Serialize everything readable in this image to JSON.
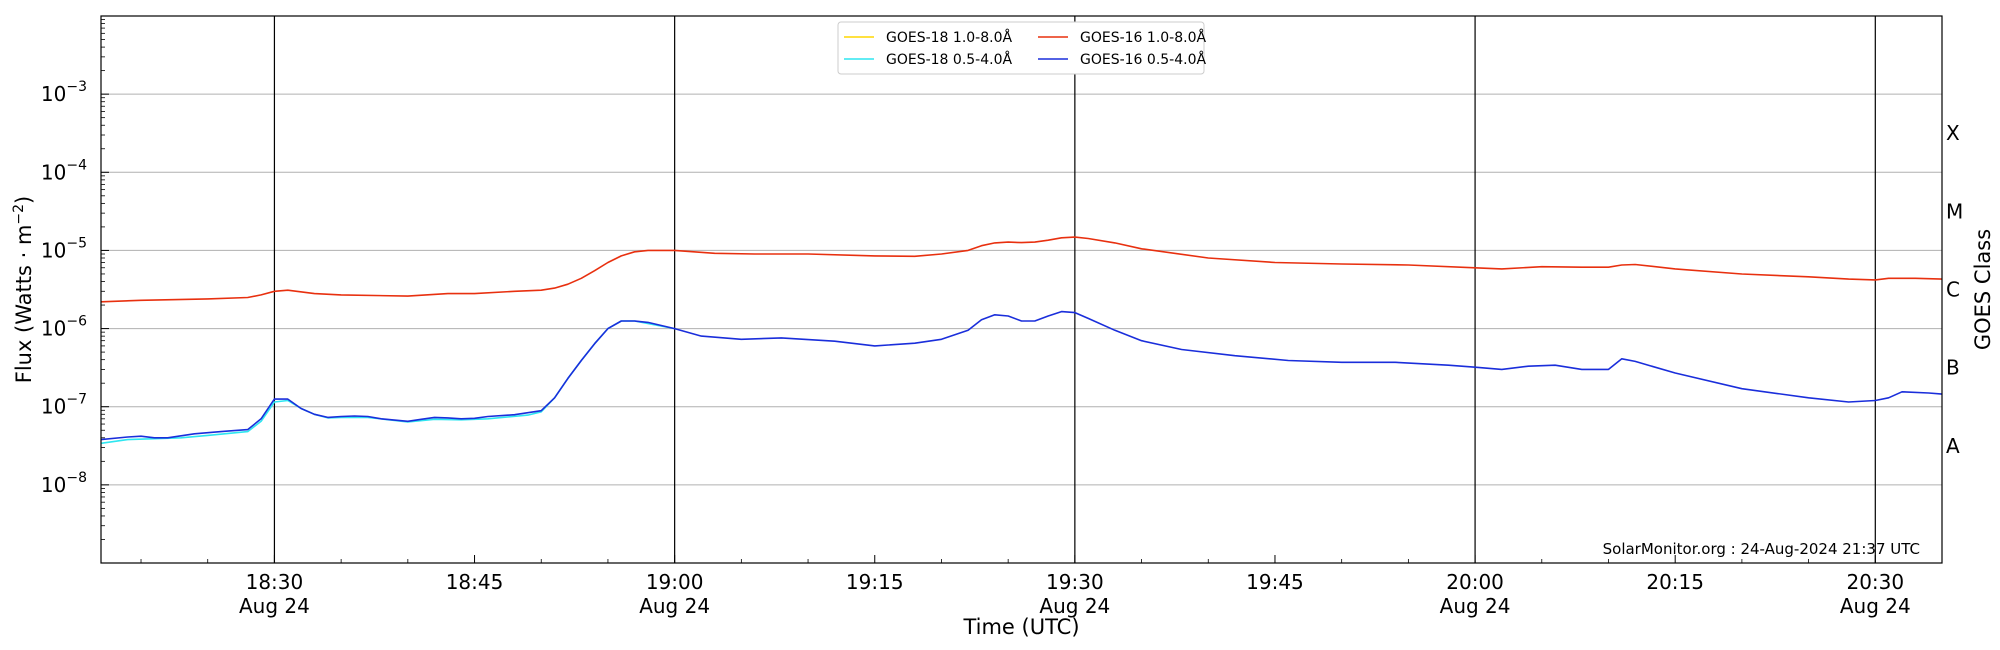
{
  "chart_data": {
    "type": "line",
    "xlabel": "Time (UTC)",
    "ylabel_main": "Flux (Watts · m",
    "ylabel_exp": "−2",
    "ylabel_close": ")",
    "right_axis_label": "GOES Class",
    "y_scale": "log",
    "ylim": [
      1e-09,
      0.01
    ],
    "xlim": [
      "18:17",
      "20:35"
    ],
    "x_ticks": [
      {
        "time": "18:30",
        "label": "18:30",
        "date": "Aug 24"
      },
      {
        "time": "18:45",
        "label": "18:45",
        "date": ""
      },
      {
        "time": "19:00",
        "label": "19:00",
        "date": "Aug 24"
      },
      {
        "time": "19:15",
        "label": "19:15",
        "date": ""
      },
      {
        "time": "19:30",
        "label": "19:30",
        "date": "Aug 24"
      },
      {
        "time": "19:45",
        "label": "19:45",
        "date": ""
      },
      {
        "time": "20:00",
        "label": "20:00",
        "date": "Aug 24"
      },
      {
        "time": "20:15",
        "label": "20:15",
        "date": ""
      },
      {
        "time": "20:30",
        "label": "20:30",
        "date": "Aug 24"
      }
    ],
    "vertical_lines": [
      "18:30",
      "19:00",
      "19:30",
      "20:00",
      "20:30"
    ],
    "y_ticks": [
      {
        "exp": -8,
        "label_base": "10",
        "label_exp": "−8"
      },
      {
        "exp": -7,
        "label_base": "10",
        "label_exp": "−7"
      },
      {
        "exp": -6,
        "label_base": "10",
        "label_exp": "−6"
      },
      {
        "exp": -5,
        "label_base": "10",
        "label_exp": "−5"
      },
      {
        "exp": -4,
        "label_base": "10",
        "label_exp": "−4"
      },
      {
        "exp": -3,
        "label_base": "10",
        "label_exp": "−3"
      }
    ],
    "goes_classes": [
      {
        "label": "A",
        "exp": -7.5
      },
      {
        "label": "B",
        "exp": -6.5
      },
      {
        "label": "C",
        "exp": -5.5
      },
      {
        "label": "M",
        "exp": -4.5
      },
      {
        "label": "X",
        "exp": -3.5
      }
    ],
    "grid": "horizontal",
    "legend_position": "top-center",
    "legend_order": [
      0,
      2,
      1,
      3
    ],
    "credit": "SolarMonitor.org : 24-Aug-2024 21:37 UTC",
    "series": [
      {
        "name": "GOES-18 1.0-8.0Å",
        "color": "#FFD700",
        "x": [
          "18:17",
          "18:30",
          "19:00",
          "19:30",
          "20:00",
          "20:35"
        ],
        "y": [
          null,
          null,
          null,
          null,
          null,
          null
        ]
      },
      {
        "name": "GOES-16 1.0-8.0Å",
        "color": "#E8300F",
        "x": [
          "18:17",
          "18:20",
          "18:25",
          "18:28",
          "18:29",
          "18:30",
          "18:31",
          "18:33",
          "18:35",
          "18:40",
          "18:43",
          "18:45",
          "18:48",
          "18:50",
          "18:51",
          "18:52",
          "18:53",
          "18:54",
          "18:55",
          "18:56",
          "18:57",
          "18:58",
          "19:00",
          "19:03",
          "19:06",
          "19:10",
          "19:15",
          "19:18",
          "19:20",
          "19:22",
          "19:23",
          "19:24",
          "19:25",
          "19:26",
          "19:27",
          "19:28",
          "19:29",
          "19:30",
          "19:31",
          "19:33",
          "19:35",
          "19:40",
          "19:45",
          "19:50",
          "19:55",
          "20:00",
          "20:02",
          "20:05",
          "20:08",
          "20:10",
          "20:11",
          "20:12",
          "20:15",
          "20:20",
          "20:25",
          "20:28",
          "20:30",
          "20:31",
          "20:33",
          "20:35"
        ],
        "y": [
          2.2e-06,
          2.3e-06,
          2.4e-06,
          2.5e-06,
          2.7e-06,
          3e-06,
          3.1e-06,
          2.8e-06,
          2.7e-06,
          2.6e-06,
          2.8e-06,
          2.8e-06,
          3e-06,
          3.1e-06,
          3.3e-06,
          3.7e-06,
          4.4e-06,
          5.5e-06,
          7e-06,
          8.5e-06,
          9.6e-06,
          1e-05,
          1e-05,
          9.2e-06,
          9e-06,
          9e-06,
          8.5e-06,
          8.4e-06,
          9e-06,
          1e-05,
          1.15e-05,
          1.25e-05,
          1.28e-05,
          1.26e-05,
          1.28e-05,
          1.35e-05,
          1.45e-05,
          1.48e-05,
          1.42e-05,
          1.25e-05,
          1.05e-05,
          8e-06,
          7e-06,
          6.7e-06,
          6.5e-06,
          6e-06,
          5.8e-06,
          6.2e-06,
          6.1e-06,
          6.1e-06,
          6.5e-06,
          6.6e-06,
          5.8e-06,
          5e-06,
          4.6e-06,
          4.3e-06,
          4.2e-06,
          4.4e-06,
          4.4e-06,
          4.3e-06
        ]
      },
      {
        "name": "GOES-18 0.5-4.0Å",
        "color": "#2EE6F0",
        "x": [
          "18:17",
          "18:19",
          "18:21",
          "18:23",
          "18:25",
          "18:28",
          "18:29",
          "18:30",
          "18:31",
          "18:32",
          "18:33",
          "18:34",
          "18:35",
          "18:37",
          "18:40",
          "18:42",
          "18:44",
          "18:46",
          "18:49",
          "18:50",
          "18:51",
          "18:52",
          "18:53",
          "18:54",
          "18:55",
          "18:56",
          "18:57",
          "19:00"
        ],
        "y": [
          3.4e-08,
          3.8e-08,
          3.9e-08,
          4e-08,
          4.3e-08,
          4.8e-08,
          6.5e-08,
          1.15e-07,
          1.2e-07,
          9.5e-08,
          8e-08,
          7.2e-08,
          7.3e-08,
          7.3e-08,
          6.4e-08,
          6.9e-08,
          6.8e-08,
          7e-08,
          7.8e-08,
          8.6e-08,
          1.3e-07,
          2.3e-07,
          3.9e-07,
          6.4e-07,
          1e-06,
          1.25e-06,
          1.25e-06,
          1e-06
        ]
      },
      {
        "name": "GOES-16 0.5-4.0Å",
        "color": "#1A2EDB",
        "x": [
          "18:17",
          "18:19",
          "18:20",
          "18:21",
          "18:22",
          "18:24",
          "18:26",
          "18:28",
          "18:29",
          "18:30",
          "18:31",
          "18:32",
          "18:33",
          "18:34",
          "18:35",
          "18:36",
          "18:37",
          "18:38",
          "18:40",
          "18:41",
          "18:42",
          "18:43",
          "18:44",
          "18:45",
          "18:46",
          "18:48",
          "18:50",
          "18:51",
          "18:52",
          "18:53",
          "18:54",
          "18:55",
          "18:56",
          "18:57",
          "18:58",
          "19:00",
          "19:02",
          "19:05",
          "19:08",
          "19:12",
          "19:15",
          "19:18",
          "19:20",
          "19:22",
          "19:23",
          "19:24",
          "19:25",
          "19:26",
          "19:27",
          "19:28",
          "19:29",
          "19:30",
          "19:31",
          "19:33",
          "19:35",
          "19:38",
          "19:42",
          "19:46",
          "19:50",
          "19:54",
          "19:58",
          "20:00",
          "20:02",
          "20:04",
          "20:06",
          "20:08",
          "20:10",
          "20:11",
          "20:12",
          "20:15",
          "20:20",
          "20:25",
          "20:28",
          "20:30",
          "20:31",
          "20:32",
          "20:34",
          "20:35"
        ],
        "y": [
          3.8e-08,
          4.1e-08,
          4.2e-08,
          4e-08,
          4e-08,
          4.5e-08,
          4.8e-08,
          5.1e-08,
          7e-08,
          1.25e-07,
          1.25e-07,
          9.5e-08,
          8e-08,
          7.3e-08,
          7.5e-08,
          7.6e-08,
          7.5e-08,
          7e-08,
          6.5e-08,
          6.9e-08,
          7.3e-08,
          7.2e-08,
          7e-08,
          7.1e-08,
          7.5e-08,
          7.9e-08,
          8.9e-08,
          1.3e-07,
          2.3e-07,
          3.9e-07,
          6.4e-07,
          1e-06,
          1.25e-06,
          1.25e-06,
          1.2e-06,
          1e-06,
          8e-07,
          7.3e-07,
          7.6e-07,
          6.9e-07,
          6e-07,
          6.5e-07,
          7.3e-07,
          9.5e-07,
          1.3e-06,
          1.5e-06,
          1.45e-06,
          1.25e-06,
          1.25e-06,
          1.45e-06,
          1.65e-06,
          1.6e-06,
          1.35e-06,
          9.5e-07,
          7e-07,
          5.4e-07,
          4.5e-07,
          3.9e-07,
          3.7e-07,
          3.7e-07,
          3.4e-07,
          3.2e-07,
          3e-07,
          3.3e-07,
          3.4e-07,
          3e-07,
          3e-07,
          4.1e-07,
          3.8e-07,
          2.7e-07,
          1.7e-07,
          1.3e-07,
          1.15e-07,
          1.2e-07,
          1.3e-07,
          1.55e-07,
          1.5e-07,
          1.45e-07
        ]
      }
    ]
  }
}
